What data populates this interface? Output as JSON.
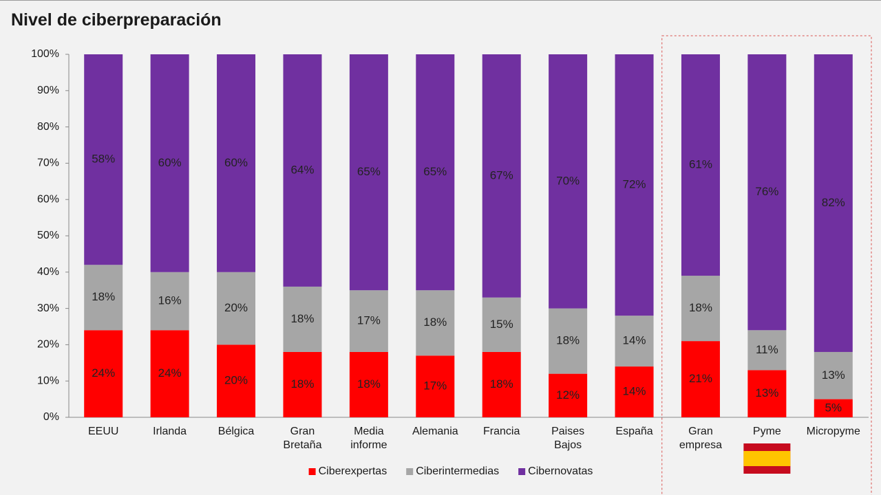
{
  "chart_data": {
    "type": "stacked_bar",
    "title": "Nivel de ciberpreparación",
    "categories": [
      "EEUU",
      "Irlanda",
      "Bélgica",
      "Gran Bretaña",
      "Media informe",
      "Alemania",
      "Francia",
      "Paises Bajos",
      "España",
      "Gran empresa",
      "Pyme",
      "Micropyme"
    ],
    "series": [
      {
        "name": "Ciberexpertas",
        "color": "#ff0000",
        "values": [
          24,
          24,
          20,
          18,
          18,
          17,
          18,
          12,
          14,
          21,
          13,
          5
        ],
        "value_labels": [
          "24%",
          "24%",
          "20%",
          "18%",
          "18%",
          "17%",
          "18%",
          "12%",
          "14%",
          "21%",
          "13%",
          "5%"
        ]
      },
      {
        "name": "Ciberintermedias",
        "color": "#a6a6a6",
        "values": [
          18,
          16,
          20,
          18,
          17,
          18,
          15,
          18,
          14,
          18,
          11,
          13
        ],
        "value_labels": [
          "18%",
          "16%",
          "20%",
          "18%",
          "17%",
          "18%",
          "15%",
          "18%",
          "14%",
          "18%",
          "11%",
          "13%"
        ]
      },
      {
        "name": "Cibernovatas",
        "color": "#7030a0",
        "values": [
          58,
          60,
          60,
          64,
          65,
          65,
          67,
          70,
          72,
          61,
          76,
          82
        ],
        "value_labels": [
          "58%",
          "60%",
          "60%",
          "64%",
          "65%",
          "65%",
          "67%",
          "70%",
          "72%",
          "61%",
          "76%",
          "82%"
        ]
      }
    ],
    "ylim": [
      0,
      100
    ],
    "yticks": [
      {
        "value": 0,
        "label": "0%"
      },
      {
        "value": 10,
        "label": "10%"
      },
      {
        "value": 20,
        "label": "20%"
      },
      {
        "value": 30,
        "label": "30%"
      },
      {
        "value": 40,
        "label": "40%"
      },
      {
        "value": 50,
        "label": "50%"
      },
      {
        "value": 60,
        "label": "60%"
      },
      {
        "value": 70,
        "label": "70%"
      },
      {
        "value": 80,
        "label": "80%"
      },
      {
        "value": 90,
        "label": "90%"
      },
      {
        "value": 100,
        "label": "100%"
      }
    ],
    "grid": false,
    "legend": "bottom"
  }
}
